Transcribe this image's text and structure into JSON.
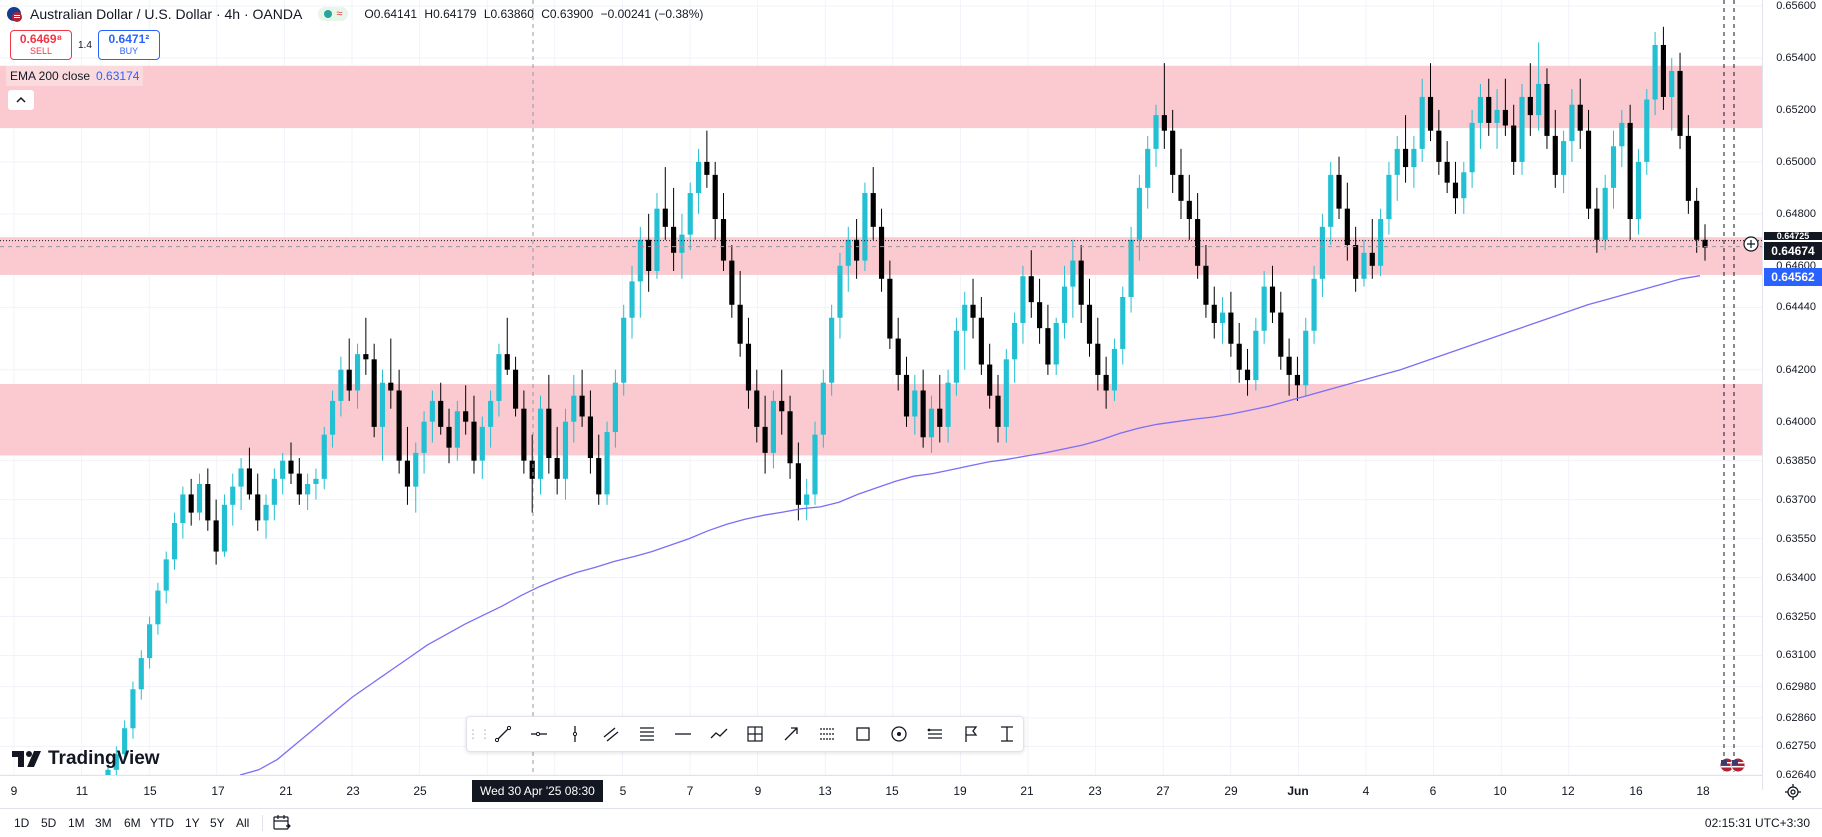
{
  "header": {
    "symbol_title": "Australian Dollar / U.S. Dollar · 4h · OANDA",
    "status_wave": "≈",
    "ohlc": {
      "open": "O0.64141",
      "high": "H0.64179",
      "low": "L0.63860",
      "close": "C0.63900",
      "change": "−0.00241 (−0.38%)"
    }
  },
  "trade": {
    "sell_price": "0.6469⁸",
    "sell_label": "SELL",
    "spread": "1.4",
    "buy_price": "0.6471²",
    "buy_label": "BUY"
  },
  "indicator": {
    "label": "EMA 200 close",
    "value": "0.63174",
    "collapse_icon": "^"
  },
  "logo": {
    "text": "TradingView"
  },
  "price_axis": {
    "ticks": [
      "0.65600",
      "0.65400",
      "0.65200",
      "0.65000",
      "0.64800",
      "0.64600",
      "0.64440",
      "0.64200",
      "0.64000",
      "0.63850",
      "0.63700",
      "0.63550",
      "0.63400",
      "0.63250",
      "0.63100",
      "0.62980",
      "0.62860",
      "0.62750",
      "0.62640"
    ],
    "current_price": "0.64674",
    "ema_price": "0.64562",
    "overlap_price": "0.64725"
  },
  "time_axis": {
    "labels": [
      "9",
      "11",
      "15",
      "17",
      "21",
      "23",
      "25",
      "5",
      "7",
      "9",
      "13",
      "15",
      "19",
      "21",
      "23",
      "27",
      "29",
      "Jun",
      "4",
      "6",
      "10",
      "12",
      "16",
      "18"
    ],
    "cursor_label": "Wed 30 Apr '25   08:30"
  },
  "bottom_bar": {
    "ranges": [
      "1D",
      "5D",
      "1M",
      "3M",
      "6M",
      "YTD",
      "1Y",
      "5Y",
      "All"
    ],
    "clock": "02:15:31 UTC+3:30"
  },
  "drawing_toolbar": {
    "tools": [
      "trend-line-icon",
      "horizontal-ray-icon",
      "vertical-line-icon",
      "parallel-channel-icon",
      "fib-retracement-icon",
      "horizontal-line-icon",
      "path-icon",
      "long-position-icon",
      "arrow-marker-icon",
      "fib-extension-icon",
      "rectangle-icon",
      "circle-icon",
      "fib-channel-icon",
      "flag-icon",
      "measure-icon"
    ]
  },
  "chart_data": {
    "type": "candlestick",
    "symbol": "AUDUSD",
    "interval": "4h",
    "colors": {
      "up": "#22c0d2",
      "down": "#000000",
      "ema": "#7b6ef6",
      "zone": "#f9c4cb",
      "crosshair": "#9598a1"
    },
    "ylim": [
      0.6264,
      0.656
    ],
    "grid": true,
    "candles": [
      [
        0.6264,
        0.6268,
        0.6262,
        0.6266
      ],
      [
        0.6266,
        0.6275,
        0.6264,
        0.6272
      ],
      [
        0.6272,
        0.6285,
        0.627,
        0.6282
      ],
      [
        0.6282,
        0.63,
        0.6278,
        0.6297
      ],
      [
        0.6297,
        0.6312,
        0.6293,
        0.6309
      ],
      [
        0.6309,
        0.6325,
        0.6305,
        0.6322
      ],
      [
        0.6322,
        0.6338,
        0.6318,
        0.6335
      ],
      [
        0.6335,
        0.635,
        0.633,
        0.6347
      ],
      [
        0.6347,
        0.6365,
        0.6343,
        0.6361
      ],
      [
        0.6361,
        0.6375,
        0.6355,
        0.6372
      ],
      [
        0.6372,
        0.6378,
        0.636,
        0.6365
      ],
      [
        0.6365,
        0.638,
        0.6362,
        0.6376
      ],
      [
        0.6376,
        0.6382,
        0.6358,
        0.6362
      ],
      [
        0.6362,
        0.637,
        0.6345,
        0.635
      ],
      [
        0.635,
        0.6372,
        0.6348,
        0.6368
      ],
      [
        0.6368,
        0.638,
        0.636,
        0.6375
      ],
      [
        0.6375,
        0.6386,
        0.6366,
        0.6382
      ],
      [
        0.6382,
        0.639,
        0.637,
        0.6372
      ],
      [
        0.6372,
        0.638,
        0.6358,
        0.6362
      ],
      [
        0.6362,
        0.6372,
        0.6355,
        0.6368
      ],
      [
        0.6368,
        0.6382,
        0.6362,
        0.6378
      ],
      [
        0.6378,
        0.6388,
        0.6372,
        0.6385
      ],
      [
        0.6385,
        0.6392,
        0.6376,
        0.638
      ],
      [
        0.638,
        0.6386,
        0.6368,
        0.6372
      ],
      [
        0.6372,
        0.638,
        0.6366,
        0.6376
      ],
      [
        0.6376,
        0.6382,
        0.637,
        0.6378
      ],
      [
        0.6378,
        0.6398,
        0.6374,
        0.6395
      ],
      [
        0.6395,
        0.6412,
        0.639,
        0.6408
      ],
      [
        0.6408,
        0.6425,
        0.6402,
        0.642
      ],
      [
        0.642,
        0.6432,
        0.6408,
        0.6412
      ],
      [
        0.6412,
        0.643,
        0.6405,
        0.6426
      ],
      [
        0.6426,
        0.644,
        0.6418,
        0.6424
      ],
      [
        0.6424,
        0.643,
        0.6394,
        0.6398
      ],
      [
        0.6398,
        0.642,
        0.6385,
        0.6415
      ],
      [
        0.6415,
        0.6432,
        0.6405,
        0.6412
      ],
      [
        0.6412,
        0.642,
        0.638,
        0.6385
      ],
      [
        0.6385,
        0.6398,
        0.6368,
        0.6375
      ],
      [
        0.6375,
        0.6392,
        0.6365,
        0.6388
      ],
      [
        0.6388,
        0.6404,
        0.638,
        0.64
      ],
      [
        0.64,
        0.6412,
        0.6392,
        0.6408
      ],
      [
        0.6408,
        0.6415,
        0.6395,
        0.6398
      ],
      [
        0.6398,
        0.6405,
        0.6384,
        0.639
      ],
      [
        0.639,
        0.6408,
        0.6385,
        0.6404
      ],
      [
        0.6404,
        0.6414,
        0.6395,
        0.64
      ],
      [
        0.64,
        0.641,
        0.638,
        0.6385
      ],
      [
        0.6385,
        0.6402,
        0.6378,
        0.6398
      ],
      [
        0.6398,
        0.6412,
        0.639,
        0.6408
      ],
      [
        0.6408,
        0.643,
        0.6402,
        0.6426
      ],
      [
        0.6426,
        0.644,
        0.6418,
        0.642
      ],
      [
        0.642,
        0.6425,
        0.6402,
        0.6405
      ],
      [
        0.6405,
        0.6412,
        0.638,
        0.6385
      ],
      [
        0.6385,
        0.6395,
        0.6365,
        0.6378
      ],
      [
        0.6378,
        0.641,
        0.6372,
        0.6405
      ],
      [
        0.6405,
        0.6418,
        0.638,
        0.6386
      ],
      [
        0.6386,
        0.6398,
        0.6372,
        0.6378
      ],
      [
        0.6378,
        0.6405,
        0.637,
        0.64
      ],
      [
        0.64,
        0.6418,
        0.6392,
        0.641
      ],
      [
        0.641,
        0.642,
        0.6398,
        0.6402
      ],
      [
        0.6402,
        0.6412,
        0.638,
        0.6386
      ],
      [
        0.6386,
        0.6395,
        0.6368,
        0.6372
      ],
      [
        0.6372,
        0.64,
        0.6368,
        0.6396
      ],
      [
        0.6396,
        0.642,
        0.639,
        0.6415
      ],
      [
        0.6415,
        0.6445,
        0.641,
        0.644
      ],
      [
        0.644,
        0.646,
        0.6432,
        0.6454
      ],
      [
        0.6454,
        0.6475,
        0.644,
        0.647
      ],
      [
        0.647,
        0.648,
        0.645,
        0.6458
      ],
      [
        0.6458,
        0.6488,
        0.6455,
        0.6482
      ],
      [
        0.6482,
        0.6498,
        0.647,
        0.6475
      ],
      [
        0.6475,
        0.649,
        0.6458,
        0.6465
      ],
      [
        0.6465,
        0.648,
        0.6455,
        0.6472
      ],
      [
        0.6472,
        0.6492,
        0.6466,
        0.6488
      ],
      [
        0.6488,
        0.6505,
        0.648,
        0.65
      ],
      [
        0.65,
        0.6512,
        0.649,
        0.6495
      ],
      [
        0.6495,
        0.65,
        0.647,
        0.6478
      ],
      [
        0.6478,
        0.6488,
        0.6458,
        0.6462
      ],
      [
        0.6462,
        0.6468,
        0.644,
        0.6445
      ],
      [
        0.6445,
        0.6458,
        0.6425,
        0.643
      ],
      [
        0.643,
        0.644,
        0.6405,
        0.6412
      ],
      [
        0.6412,
        0.642,
        0.6392,
        0.6398
      ],
      [
        0.6398,
        0.641,
        0.638,
        0.6388
      ],
      [
        0.6388,
        0.6412,
        0.6382,
        0.6408
      ],
      [
        0.6408,
        0.642,
        0.6395,
        0.6404
      ],
      [
        0.6404,
        0.641,
        0.6378,
        0.6384
      ],
      [
        0.6384,
        0.6392,
        0.6362,
        0.6368
      ],
      [
        0.6368,
        0.6378,
        0.6362,
        0.6372
      ],
      [
        0.6372,
        0.64,
        0.6368,
        0.6395
      ],
      [
        0.6395,
        0.642,
        0.639,
        0.6415
      ],
      [
        0.6415,
        0.6445,
        0.641,
        0.644
      ],
      [
        0.644,
        0.6465,
        0.6432,
        0.646
      ],
      [
        0.646,
        0.6475,
        0.645,
        0.647
      ],
      [
        0.647,
        0.6478,
        0.6455,
        0.6462
      ],
      [
        0.6462,
        0.6492,
        0.6458,
        0.6488
      ],
      [
        0.6488,
        0.6498,
        0.647,
        0.6475
      ],
      [
        0.6475,
        0.6482,
        0.645,
        0.6455
      ],
      [
        0.6455,
        0.6462,
        0.6428,
        0.6432
      ],
      [
        0.6432,
        0.644,
        0.6412,
        0.6418
      ],
      [
        0.6418,
        0.6425,
        0.6398,
        0.6402
      ],
      [
        0.6402,
        0.6418,
        0.6395,
        0.6412
      ],
      [
        0.6412,
        0.642,
        0.639,
        0.6394
      ],
      [
        0.6394,
        0.641,
        0.6388,
        0.6405
      ],
      [
        0.6405,
        0.6418,
        0.6392,
        0.6398
      ],
      [
        0.6398,
        0.642,
        0.6392,
        0.6415
      ],
      [
        0.6415,
        0.644,
        0.641,
        0.6435
      ],
      [
        0.6435,
        0.645,
        0.642,
        0.6445
      ],
      [
        0.6445,
        0.6455,
        0.6432,
        0.644
      ],
      [
        0.644,
        0.6448,
        0.6418,
        0.6422
      ],
      [
        0.6422,
        0.643,
        0.6405,
        0.641
      ],
      [
        0.641,
        0.6418,
        0.6392,
        0.6398
      ],
      [
        0.6398,
        0.6428,
        0.6392,
        0.6424
      ],
      [
        0.6424,
        0.6442,
        0.6415,
        0.6438
      ],
      [
        0.6438,
        0.646,
        0.643,
        0.6456
      ],
      [
        0.6456,
        0.6466,
        0.644,
        0.6446
      ],
      [
        0.6446,
        0.6455,
        0.643,
        0.6436
      ],
      [
        0.6436,
        0.6445,
        0.6418,
        0.6422
      ],
      [
        0.6422,
        0.644,
        0.6418,
        0.6438
      ],
      [
        0.6438,
        0.646,
        0.6432,
        0.6452
      ],
      [
        0.6452,
        0.647,
        0.644,
        0.6462
      ],
      [
        0.6462,
        0.6468,
        0.6438,
        0.6445
      ],
      [
        0.6445,
        0.6455,
        0.6425,
        0.643
      ],
      [
        0.643,
        0.644,
        0.6412,
        0.6418
      ],
      [
        0.6418,
        0.6425,
        0.6405,
        0.6412
      ],
      [
        0.6412,
        0.6432,
        0.6408,
        0.6428
      ],
      [
        0.6428,
        0.6452,
        0.6422,
        0.6448
      ],
      [
        0.6448,
        0.6475,
        0.6442,
        0.647
      ],
      [
        0.647,
        0.6495,
        0.6462,
        0.649
      ],
      [
        0.649,
        0.651,
        0.6482,
        0.6505
      ],
      [
        0.6505,
        0.6522,
        0.6498,
        0.6518
      ],
      [
        0.6518,
        0.6538,
        0.6505,
        0.6512
      ],
      [
        0.6512,
        0.652,
        0.6488,
        0.6495
      ],
      [
        0.6495,
        0.6505,
        0.6478,
        0.6485
      ],
      [
        0.6485,
        0.6495,
        0.647,
        0.6478
      ],
      [
        0.6478,
        0.6488,
        0.6455,
        0.646
      ],
      [
        0.646,
        0.6468,
        0.644,
        0.6445
      ],
      [
        0.6445,
        0.6452,
        0.6432,
        0.6438
      ],
      [
        0.6438,
        0.6448,
        0.643,
        0.6442
      ],
      [
        0.6442,
        0.645,
        0.6425,
        0.643
      ],
      [
        0.643,
        0.6438,
        0.6415,
        0.642
      ],
      [
        0.642,
        0.6428,
        0.641,
        0.6416
      ],
      [
        0.6416,
        0.644,
        0.6412,
        0.6435
      ],
      [
        0.6435,
        0.6458,
        0.643,
        0.6452
      ],
      [
        0.6452,
        0.646,
        0.6438,
        0.6442
      ],
      [
        0.6442,
        0.645,
        0.642,
        0.6425
      ],
      [
        0.6425,
        0.6432,
        0.641,
        0.6418
      ],
      [
        0.6418,
        0.6425,
        0.6408,
        0.6414
      ],
      [
        0.6414,
        0.644,
        0.641,
        0.6435
      ],
      [
        0.6435,
        0.646,
        0.643,
        0.6455
      ],
      [
        0.6455,
        0.648,
        0.6448,
        0.6475
      ],
      [
        0.6475,
        0.65,
        0.6468,
        0.6495
      ],
      [
        0.6495,
        0.6502,
        0.6478,
        0.6482
      ],
      [
        0.6482,
        0.6492,
        0.6462,
        0.6468
      ],
      [
        0.6468,
        0.6475,
        0.645,
        0.6455
      ],
      [
        0.6455,
        0.647,
        0.6452,
        0.6465
      ],
      [
        0.6465,
        0.6478,
        0.6455,
        0.646
      ],
      [
        0.646,
        0.6482,
        0.6456,
        0.6478
      ],
      [
        0.6478,
        0.65,
        0.6472,
        0.6495
      ],
      [
        0.6495,
        0.651,
        0.6485,
        0.6505
      ],
      [
        0.6505,
        0.6518,
        0.6492,
        0.6498
      ],
      [
        0.6498,
        0.651,
        0.649,
        0.6505
      ],
      [
        0.6505,
        0.6532,
        0.65,
        0.6525
      ],
      [
        0.6525,
        0.6538,
        0.6508,
        0.6512
      ],
      [
        0.6512,
        0.652,
        0.6495,
        0.65
      ],
      [
        0.65,
        0.6508,
        0.6488,
        0.6492
      ],
      [
        0.6492,
        0.65,
        0.648,
        0.6486
      ],
      [
        0.6486,
        0.65,
        0.648,
        0.6496
      ],
      [
        0.6496,
        0.652,
        0.649,
        0.6515
      ],
      [
        0.6515,
        0.653,
        0.6505,
        0.6525
      ],
      [
        0.6525,
        0.6532,
        0.651,
        0.6515
      ],
      [
        0.6515,
        0.6528,
        0.6505,
        0.652
      ],
      [
        0.652,
        0.6532,
        0.651,
        0.6514
      ],
      [
        0.6514,
        0.6522,
        0.6495,
        0.65
      ],
      [
        0.65,
        0.653,
        0.6495,
        0.6525
      ],
      [
        0.6525,
        0.6538,
        0.651,
        0.6518
      ],
      [
        0.6518,
        0.6546,
        0.6512,
        0.653
      ],
      [
        0.653,
        0.6536,
        0.6505,
        0.651
      ],
      [
        0.651,
        0.652,
        0.649,
        0.6495
      ],
      [
        0.6495,
        0.6512,
        0.6488,
        0.6508
      ],
      [
        0.6508,
        0.6528,
        0.65,
        0.6522
      ],
      [
        0.6522,
        0.6532,
        0.6505,
        0.6512
      ],
      [
        0.6512,
        0.652,
        0.6478,
        0.6482
      ],
      [
        0.6482,
        0.649,
        0.6465,
        0.647
      ],
      [
        0.647,
        0.6495,
        0.6466,
        0.649
      ],
      [
        0.649,
        0.6512,
        0.6482,
        0.6506
      ],
      [
        0.6506,
        0.652,
        0.6498,
        0.6515
      ],
      [
        0.6515,
        0.6522,
        0.647,
        0.6478
      ],
      [
        0.6478,
        0.6505,
        0.6472,
        0.65
      ],
      [
        0.65,
        0.6528,
        0.6495,
        0.6524
      ],
      [
        0.6524,
        0.655,
        0.6518,
        0.6545
      ],
      [
        0.6545,
        0.6552,
        0.652,
        0.6525
      ],
      [
        0.6525,
        0.654,
        0.6512,
        0.6535
      ],
      [
        0.6535,
        0.6542,
        0.6505,
        0.651
      ],
      [
        0.651,
        0.6518,
        0.648,
        0.6485
      ],
      [
        0.6485,
        0.649,
        0.6465,
        0.647
      ],
      [
        0.647,
        0.6476,
        0.6462,
        0.6467
      ]
    ],
    "ema200": [
      0.6264,
      0.6266,
      0.627,
      0.6276,
      0.6282,
      0.6288,
      0.6294,
      0.6299,
      0.6304,
      0.6309,
      0.6314,
      0.6318,
      0.6322,
      0.63255,
      0.6329,
      0.6333,
      0.63365,
      0.63395,
      0.6342,
      0.6344,
      0.63462,
      0.6348,
      0.635,
      0.63525,
      0.6355,
      0.6358,
      0.63605,
      0.63625,
      0.6364,
      0.63652,
      0.63665,
      0.63672,
      0.6369,
      0.6372,
      0.63745,
      0.6377,
      0.6379,
      0.638,
      0.63815,
      0.6383,
      0.63845,
      0.63855,
      0.63868,
      0.6388,
      0.63895,
      0.6391,
      0.6393,
      0.63955,
      0.63975,
      0.6399,
      0.64,
      0.6401,
      0.64018,
      0.6403,
      0.64045,
      0.6406,
      0.6408,
      0.641,
      0.6412,
      0.6414,
      0.6416,
      0.6418,
      0.642,
      0.64225,
      0.6425,
      0.64275,
      0.643,
      0.64325,
      0.6435,
      0.64375,
      0.644,
      0.64425,
      0.6445,
      0.6447,
      0.6449,
      0.6451,
      0.6453,
      0.6455,
      0.64562
    ],
    "zones": [
      {
        "from": 0.6513,
        "to": 0.6537
      },
      {
        "from": 0.64565,
        "to": 0.6471
      },
      {
        "from": 0.6387,
        "to": 0.64145
      }
    ],
    "crosshair_price": 0.64674,
    "last_close": 0.64674,
    "ema_last": 0.64562
  }
}
